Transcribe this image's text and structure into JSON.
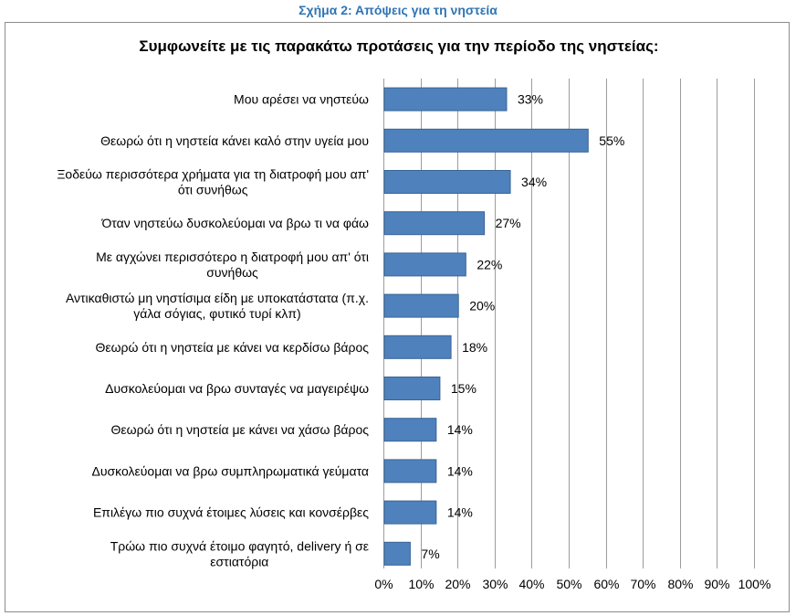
{
  "figure_caption": "Σχήμα 2: Απόψεις για τη νηστεία",
  "chart_data": {
    "type": "bar",
    "orientation": "horizontal",
    "title": "Συμφωνείτε με τις παρακάτω προτάσεις για την περίοδο της νηστείας:",
    "categories": [
      [
        "Μου αρέσει να νηστεύω"
      ],
      [
        "Θεωρώ ότι η νηστεία κάνει καλό στην υγεία μου"
      ],
      [
        "Ξοδεύω περισσότερα χρήματα για τη διατροφή μου απ'",
        "ότι συνήθως"
      ],
      [
        "Όταν νηστεύω δυσκολεύομαι να βρω τι να φάω"
      ],
      [
        "Με αγχώνει περισσότερο η διατροφή μου απ' ότι",
        "συνήθως"
      ],
      [
        "Αντικαθιστώ μη νηστίσιμα είδη με υποκατάστατα (π.χ.",
        "γάλα σόγιας, φυτικό τυρί κλπ)"
      ],
      [
        "Θεωρώ ότι η νηστεία με κάνει να κερδίσω βάρος"
      ],
      [
        "Δυσκολεύομαι να βρω συνταγές να μαγειρέψω"
      ],
      [
        "Θεωρώ ότι η νηστεία με κάνει να χάσω βάρος"
      ],
      [
        "Δυσκολεύομαι να βρω συμπληρωματικά γεύματα"
      ],
      [
        "Επιλέγω πιο συχνά έτοιμες λύσεις και κονσέρβες"
      ],
      [
        "Τρώω πιο συχνά έτοιμο φαγητό, delivery ή σε",
        "εστιατόρια"
      ]
    ],
    "values": [
      33,
      55,
      34,
      27,
      22,
      20,
      18,
      15,
      14,
      14,
      14,
      7
    ],
    "value_labels": [
      "33%",
      "55%",
      "34%",
      "27%",
      "22%",
      "20%",
      "18%",
      "15%",
      "14%",
      "14%",
      "14%",
      "7%"
    ],
    "xlim": [
      0,
      100
    ],
    "x_ticks": [
      0,
      10,
      20,
      30,
      40,
      50,
      60,
      70,
      80,
      90,
      100
    ],
    "x_tick_labels": [
      "0%",
      "10%",
      "20%",
      "30%",
      "40%",
      "50%",
      "60%",
      "70%",
      "80%",
      "90%",
      "100%"
    ],
    "grid": "vertical",
    "legend": "none",
    "colors": {
      "bar": "#4f81bd",
      "bar_edge": "#3a6494",
      "grid": "#9c9c9c",
      "caption": "#2e74b5"
    }
  }
}
